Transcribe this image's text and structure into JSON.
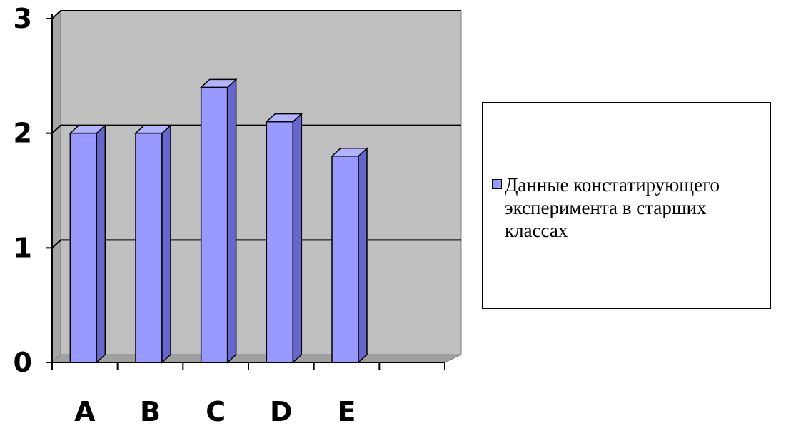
{
  "chart_data": {
    "type": "bar",
    "categories": [
      "A",
      "B",
      "C",
      "D",
      "E",
      ""
    ],
    "series": [
      {
        "name": "Данные констатирующего эксперимента в старших классах",
        "values": [
          2.0,
          2.0,
          2.4,
          2.1,
          1.8,
          null
        ]
      }
    ],
    "y_ticks": [
      "0",
      "1",
      "2",
      "3"
    ],
    "ylim": [
      0,
      3
    ],
    "grid": "horizontal",
    "legend": "right",
    "three_d": true
  },
  "colors": {
    "bar_front": "#9999ff",
    "bar_side": "#6666cc",
    "bar_top": "#b3b3ff",
    "plot_back_wall": "#c0c0c0",
    "plot_side_wall": "#a6a6a6",
    "plot_floor": "#a0a0a0"
  }
}
